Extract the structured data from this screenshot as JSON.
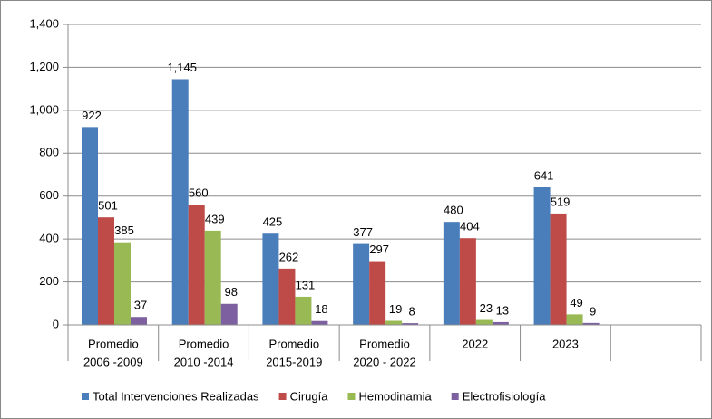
{
  "chart_data": {
    "type": "bar",
    "categories": [
      [
        "Promedio",
        "2006 -2009"
      ],
      [
        "Promedio",
        "2010 -2014"
      ],
      [
        "Promedio",
        "2015-2019"
      ],
      [
        "Promedio",
        "2020 - 2022"
      ],
      [
        "2022"
      ],
      [
        "2023"
      ],
      null
    ],
    "series": [
      {
        "name": "Total Intervenciones Realizadas",
        "color": "#4a7ebb",
        "values": [
          922,
          1145,
          425,
          377,
          480,
          641,
          null
        ],
        "value_labels": [
          "922",
          "1,145",
          "425",
          "377",
          "480",
          "641",
          null
        ]
      },
      {
        "name": "Cirugía",
        "color": "#be4b48",
        "values": [
          501,
          560,
          262,
          297,
          404,
          519,
          null
        ]
      },
      {
        "name": "Hemodinamia",
        "color": "#98b954",
        "values": [
          385,
          439,
          131,
          19,
          23,
          49,
          null
        ]
      },
      {
        "name": "Electrofisiología",
        "color": "#7d60a0",
        "values": [
          37,
          98,
          18,
          8,
          13,
          9,
          null
        ]
      }
    ],
    "ylim": [
      0,
      1400
    ],
    "yticks": [
      0,
      200,
      400,
      600,
      800,
      {
        "value": 1000,
        "label": "1,000"
      },
      {
        "value": 1200,
        "label": "1,200"
      },
      {
        "value": 1400,
        "label": "1,400"
      }
    ],
    "grid": true,
    "legend": "bottom"
  }
}
